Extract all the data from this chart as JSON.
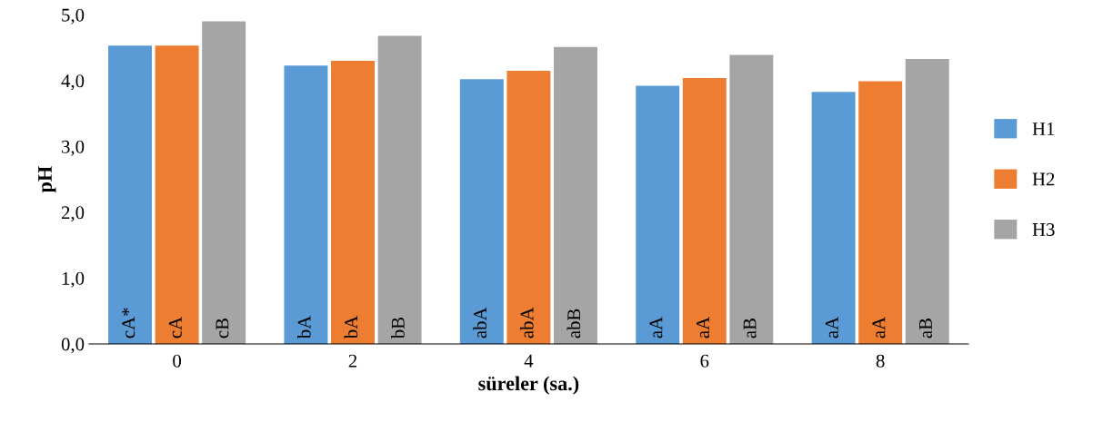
{
  "chart_data": {
    "type": "bar",
    "xlabel": "süreler (sa.)",
    "ylabel": "pH",
    "categories": [
      "0",
      "2",
      "4",
      "6",
      "8"
    ],
    "series": [
      {
        "name": "H1",
        "color": "#5b9bd5",
        "values": [
          4.53,
          4.23,
          4.02,
          3.92,
          3.83
        ],
        "value_labels": [
          "cA*",
          "bA",
          "abA",
          "aA",
          "aA"
        ]
      },
      {
        "name": "H2",
        "color": "#ed7d31",
        "values": [
          4.53,
          4.3,
          4.15,
          4.04,
          3.99
        ],
        "value_labels": [
          "cA",
          "bA",
          "abA",
          "aA",
          "aA"
        ]
      },
      {
        "name": "H3",
        "color": "#a5a5a5",
        "values": [
          4.9,
          4.68,
          4.51,
          4.39,
          4.33
        ],
        "value_labels": [
          "cB",
          "bB",
          "abB",
          "aB",
          "aB"
        ]
      }
    ],
    "ylim": [
      0,
      5
    ],
    "yticks": [
      {
        "value": 0,
        "label": "0,0"
      },
      {
        "value": 1,
        "label": "1,0"
      },
      {
        "value": 2,
        "label": "2,0"
      },
      {
        "value": 3,
        "label": "3,0"
      },
      {
        "value": 4,
        "label": "4,0"
      },
      {
        "value": 5,
        "label": "5,0"
      }
    ],
    "grid": false,
    "legend": "right"
  }
}
